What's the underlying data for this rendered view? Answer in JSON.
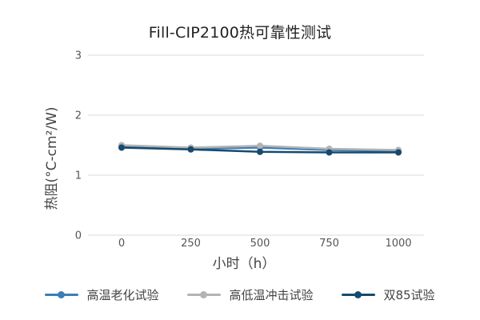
{
  "chart_data": {
    "type": "line",
    "title": "Fill-CIP2100热可靠性测试",
    "xlabel": "小时（h）",
    "ylabel": "热阻(°C-cm²/W)",
    "x": [
      0,
      250,
      500,
      750,
      1000
    ],
    "x_tick_labels": [
      "0",
      "250",
      "500",
      "750",
      "1000"
    ],
    "y_tick_labels": [
      "0",
      "1",
      "2",
      "3"
    ],
    "ylim": [
      0,
      3
    ],
    "grid": "horizontal",
    "legend_position": "bottom",
    "series": [
      {
        "name": "高温老化试验",
        "color": "#3a7fb8",
        "values": [
          1.48,
          1.44,
          1.46,
          1.42,
          1.4
        ]
      },
      {
        "name": "高低温冲击试验",
        "color": "#b3b3b3",
        "values": [
          1.5,
          1.46,
          1.49,
          1.44,
          1.42
        ]
      },
      {
        "name": "双85试验",
        "color": "#174a6e",
        "values": [
          1.46,
          1.43,
          1.39,
          1.38,
          1.38
        ]
      }
    ]
  }
}
